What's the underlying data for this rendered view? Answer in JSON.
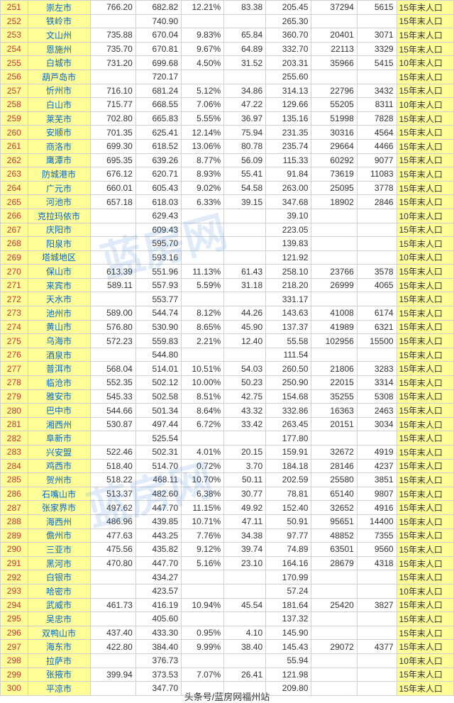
{
  "columns": {
    "count": 10
  },
  "rows": [
    {
      "id": 251,
      "city": "崇左市",
      "a": "766.20",
      "b": "682.82",
      "c": "12.21%",
      "d": "83.38",
      "e": "205.45",
      "f": "37294",
      "g": "5615",
      "note": "15年末人口"
    },
    {
      "id": 252,
      "city": "铁岭市",
      "a": "",
      "b": "740.90",
      "c": "",
      "d": "",
      "e": "265.30",
      "f": "",
      "g": "",
      "note": "15年末人口"
    },
    {
      "id": 253,
      "city": "文山州",
      "a": "735.88",
      "b": "670.04",
      "c": "9.83%",
      "d": "65.84",
      "e": "360.70",
      "f": "20401",
      "g": "3071",
      "note": "15年末人口"
    },
    {
      "id": 254,
      "city": "恩施州",
      "a": "735.70",
      "b": "670.81",
      "c": "9.67%",
      "d": "64.89",
      "e": "332.70",
      "f": "22113",
      "g": "3329",
      "note": "15年末人口"
    },
    {
      "id": 255,
      "city": "白城市",
      "a": "731.20",
      "b": "699.68",
      "c": "4.50%",
      "d": "31.52",
      "e": "203.31",
      "f": "35966",
      "g": "5415",
      "note": "10年末人口"
    },
    {
      "id": 256,
      "city": "葫芦岛市",
      "a": "",
      "b": "720.17",
      "c": "",
      "d": "",
      "e": "255.60",
      "f": "",
      "g": "",
      "note": "15年末人口"
    },
    {
      "id": 257,
      "city": "忻州市",
      "a": "716.10",
      "b": "681.24",
      "c": "5.12%",
      "d": "34.86",
      "e": "314.13",
      "f": "22796",
      "g": "3432",
      "note": "15年末人口"
    },
    {
      "id": 258,
      "city": "白山市",
      "a": "715.77",
      "b": "668.55",
      "c": "7.06%",
      "d": "47.22",
      "e": "129.66",
      "f": "55205",
      "g": "8311",
      "note": "10年末人口"
    },
    {
      "id": 259,
      "city": "莱芜市",
      "a": "702.80",
      "b": "665.83",
      "c": "5.55%",
      "d": "36.97",
      "e": "135.16",
      "f": "51998",
      "g": "7828",
      "note": "15年末人口"
    },
    {
      "id": 260,
      "city": "安顺市",
      "a": "701.35",
      "b": "625.41",
      "c": "12.14%",
      "d": "75.94",
      "e": "231.35",
      "f": "30316",
      "g": "4564",
      "note": "15年末人口"
    },
    {
      "id": 261,
      "city": "商洛市",
      "a": "699.30",
      "b": "618.52",
      "c": "13.06%",
      "d": "80.78",
      "e": "235.74",
      "f": "29664",
      "g": "4466",
      "note": "15年末人口"
    },
    {
      "id": 262,
      "city": "鹰潭市",
      "a": "695.35",
      "b": "639.26",
      "c": "8.77%",
      "d": "56.09",
      "e": "115.33",
      "f": "60292",
      "g": "9077",
      "note": "15年末人口"
    },
    {
      "id": 263,
      "city": "防城港市",
      "a": "676.12",
      "b": "620.71",
      "c": "8.93%",
      "d": "55.41",
      "e": "91.84",
      "f": "73619",
      "g": "11083",
      "note": "15年末人口"
    },
    {
      "id": 264,
      "city": "广元市",
      "a": "660.01",
      "b": "605.43",
      "c": "9.02%",
      "d": "54.58",
      "e": "263.00",
      "f": "25095",
      "g": "3778",
      "note": "15年末人口"
    },
    {
      "id": 265,
      "city": "河池市",
      "a": "657.18",
      "b": "618.03",
      "c": "6.33%",
      "d": "39.15",
      "e": "347.68",
      "f": "18902",
      "g": "2846",
      "note": "15年末人口"
    },
    {
      "id": 266,
      "city": "克拉玛依市",
      "a": "",
      "b": "629.43",
      "c": "",
      "d": "",
      "e": "39.10",
      "f": "",
      "g": "",
      "note": "10年末人口"
    },
    {
      "id": 267,
      "city": "庆阳市",
      "a": "",
      "b": "609.43",
      "c": "",
      "d": "",
      "e": "223.05",
      "f": "",
      "g": "",
      "note": "15年末人口"
    },
    {
      "id": 268,
      "city": "阳泉市",
      "a": "",
      "b": "595.70",
      "c": "",
      "d": "",
      "e": "139.83",
      "f": "",
      "g": "",
      "note": "15年末人口"
    },
    {
      "id": 269,
      "city": "塔城地区",
      "a": "",
      "b": "593.16",
      "c": "",
      "d": "",
      "e": "121.92",
      "f": "",
      "g": "",
      "note": "10年末人口"
    },
    {
      "id": 270,
      "city": "保山市",
      "a": "613.39",
      "b": "551.96",
      "c": "11.13%",
      "d": "61.43",
      "e": "258.10",
      "f": "23766",
      "g": "3578",
      "note": "15年末人口"
    },
    {
      "id": 271,
      "city": "来宾市",
      "a": "589.11",
      "b": "557.93",
      "c": "5.59%",
      "d": "31.18",
      "e": "218.20",
      "f": "26999",
      "g": "4065",
      "note": "15年末人口"
    },
    {
      "id": 272,
      "city": "天水市",
      "a": "",
      "b": "553.77",
      "c": "",
      "d": "",
      "e": "331.17",
      "f": "",
      "g": "",
      "note": "15年末人口"
    },
    {
      "id": 273,
      "city": "池州市",
      "a": "589.00",
      "b": "544.74",
      "c": "8.12%",
      "d": "44.26",
      "e": "143.63",
      "f": "41008",
      "g": "6174",
      "note": "15年末人口"
    },
    {
      "id": 274,
      "city": "黄山市",
      "a": "576.80",
      "b": "530.90",
      "c": "8.65%",
      "d": "45.90",
      "e": "137.37",
      "f": "41989",
      "g": "6321",
      "note": "15年末人口"
    },
    {
      "id": 275,
      "city": "乌海市",
      "a": "572.23",
      "b": "559.83",
      "c": "2.21%",
      "d": "12.40",
      "e": "55.58",
      "f": "102956",
      "g": "15500",
      "note": "15年末人口"
    },
    {
      "id": 276,
      "city": "酒泉市",
      "a": "",
      "b": "544.80",
      "c": "",
      "d": "",
      "e": "111.54",
      "f": "",
      "g": "",
      "note": "15年末人口"
    },
    {
      "id": 277,
      "city": "普洱市",
      "a": "568.04",
      "b": "514.01",
      "c": "10.51%",
      "d": "54.03",
      "e": "260.50",
      "f": "21806",
      "g": "3283",
      "note": "15年末人口"
    },
    {
      "id": 278,
      "city": "临沧市",
      "a": "552.35",
      "b": "502.12",
      "c": "10.00%",
      "d": "50.23",
      "e": "250.90",
      "f": "22015",
      "g": "3314",
      "note": "15年末人口"
    },
    {
      "id": 279,
      "city": "雅安市",
      "a": "545.33",
      "b": "502.58",
      "c": "8.51%",
      "d": "42.75",
      "e": "154.68",
      "f": "35255",
      "g": "5308",
      "note": "15年末人口"
    },
    {
      "id": 280,
      "city": "巴中市",
      "a": "544.66",
      "b": "501.34",
      "c": "8.64%",
      "d": "43.32",
      "e": "332.86",
      "f": "16363",
      "g": "2463",
      "note": "15年末人口"
    },
    {
      "id": 281,
      "city": "湘西州",
      "a": "530.87",
      "b": "497.44",
      "c": "6.72%",
      "d": "33.42",
      "e": "263.45",
      "f": "20151",
      "g": "3034",
      "note": "15年末人口"
    },
    {
      "id": 282,
      "city": "阜新市",
      "a": "",
      "b": "525.54",
      "c": "",
      "d": "",
      "e": "177.80",
      "f": "",
      "g": "",
      "note": "15年末人口"
    },
    {
      "id": 283,
      "city": "兴安盟",
      "a": "522.46",
      "b": "502.31",
      "c": "4.01%",
      "d": "20.15",
      "e": "159.91",
      "f": "32672",
      "g": "4919",
      "note": "15年末人口"
    },
    {
      "id": 284,
      "city": "鸡西市",
      "a": "518.40",
      "b": "514.70",
      "c": "0.72%",
      "d": "3.70",
      "e": "184.18",
      "f": "28146",
      "g": "4237",
      "note": "15年末人口"
    },
    {
      "id": 285,
      "city": "贺州市",
      "a": "518.22",
      "b": "468.11",
      "c": "10.70%",
      "d": "50.11",
      "e": "202.59",
      "f": "25580",
      "g": "3851",
      "note": "15年末人口"
    },
    {
      "id": 286,
      "city": "石嘴山市",
      "a": "513.37",
      "b": "482.60",
      "c": "6.38%",
      "d": "30.77",
      "e": "78.81",
      "f": "65140",
      "g": "9807",
      "note": "15年末人口"
    },
    {
      "id": 287,
      "city": "张家界市",
      "a": "497.62",
      "b": "447.70",
      "c": "11.15%",
      "d": "49.92",
      "e": "152.40",
      "f": "32652",
      "g": "4916",
      "note": "15年末人口"
    },
    {
      "id": 288,
      "city": "海西州",
      "a": "486.96",
      "b": "439.85",
      "c": "10.71%",
      "d": "47.11",
      "e": "50.91",
      "f": "95651",
      "g": "14400",
      "note": "15年末人口"
    },
    {
      "id": 289,
      "city": "儋州市",
      "a": "477.63",
      "b": "443.25",
      "c": "7.76%",
      "d": "34.38",
      "e": "97.77",
      "f": "48852",
      "g": "7355",
      "note": "15年末人口"
    },
    {
      "id": 290,
      "city": "三亚市",
      "a": "475.56",
      "b": "435.82",
      "c": "9.12%",
      "d": "39.74",
      "e": "74.89",
      "f": "63501",
      "g": "9560",
      "note": "15年末人口"
    },
    {
      "id": 291,
      "city": "黑河市",
      "a": "470.80",
      "b": "447.70",
      "c": "5.16%",
      "d": "23.10",
      "e": "164.16",
      "f": "28679",
      "g": "4318",
      "note": "15年末人口"
    },
    {
      "id": 292,
      "city": "白银市",
      "a": "",
      "b": "434.27",
      "c": "",
      "d": "",
      "e": "170.99",
      "f": "",
      "g": "",
      "note": "15年末人口"
    },
    {
      "id": 293,
      "city": "哈密市",
      "a": "",
      "b": "423.57",
      "c": "",
      "d": "",
      "e": "57.24",
      "f": "",
      "g": "",
      "note": "10年末人口"
    },
    {
      "id": 294,
      "city": "武威市",
      "a": "461.73",
      "b": "416.19",
      "c": "10.94%",
      "d": "45.54",
      "e": "181.64",
      "f": "25420",
      "g": "3827",
      "note": "15年末人口"
    },
    {
      "id": 295,
      "city": "吴忠市",
      "a": "",
      "b": "405.60",
      "c": "",
      "d": "",
      "e": "137.32",
      "f": "",
      "g": "",
      "note": "15年末人口"
    },
    {
      "id": 296,
      "city": "双鸭山市",
      "a": "437.40",
      "b": "433.30",
      "c": "0.95%",
      "d": "4.10",
      "e": "145.90",
      "f": "",
      "g": "",
      "note": "15年末人口"
    },
    {
      "id": 297,
      "city": "海东市",
      "a": "422.80",
      "b": "384.40",
      "c": "9.99%",
      "d": "38.40",
      "e": "145.43",
      "f": "29072",
      "g": "4377",
      "note": "15年末人口"
    },
    {
      "id": 298,
      "city": "拉萨市",
      "a": "",
      "b": "376.73",
      "c": "",
      "d": "",
      "e": "55.94",
      "f": "",
      "g": "",
      "note": "10年末人口"
    },
    {
      "id": 299,
      "city": "张掖市",
      "a": "399.94",
      "b": "373.53",
      "c": "7.07%",
      "d": "26.41",
      "e": "121.98",
      "f": "",
      "g": "",
      "note": "15年末人口"
    },
    {
      "id": 300,
      "city": "平凉市",
      "a": "",
      "b": "347.70",
      "c": "",
      "d": "",
      "e": "209.80",
      "f": "",
      "g": "",
      "note": "15年末人口"
    }
  ],
  "footer": "头条号/蓝房网福州站",
  "watermark": "蓝房网"
}
